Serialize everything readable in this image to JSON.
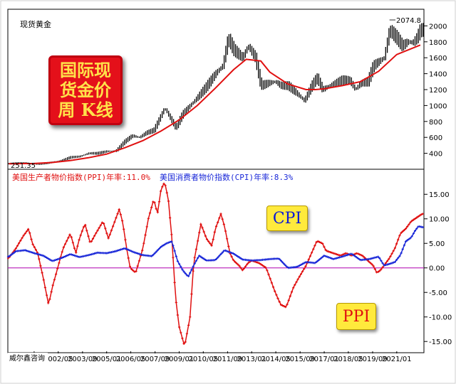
{
  "chart_data": [
    {
      "type": "line",
      "series_label": "现货黄金",
      "ylim": [
        200,
        2200
      ],
      "yticks": [
        400,
        600,
        800,
        1000,
        1200,
        1400,
        1600,
        1800,
        2000
      ],
      "y_tick_labels": [
        "400",
        "600",
        "800",
        "1000",
        "1200",
        "1400",
        "1600",
        "1800",
        "2000"
      ],
      "high_label": "2074.8",
      "low_label": "251.35",
      "series": [
        {
          "kind": "weekly-candles",
          "color": "#000000",
          "x": [
            1999.6,
            2000.5,
            2001.2,
            2001.8,
            2002.5,
            2003.0,
            2003.5,
            2004.0,
            2004.5,
            2005.0,
            2005.5,
            2006.0,
            2006.4,
            2006.8,
            2007.2,
            2007.6,
            2008.0,
            2008.2,
            2008.8,
            2009.2,
            2009.6,
            2010.0,
            2010.5,
            2011.0,
            2011.4,
            2011.7,
            2012.0,
            2012.5,
            2012.8,
            2013.2,
            2013.5,
            2013.9,
            2014.3,
            2014.6,
            2015.0,
            2015.5,
            2015.9,
            2016.3,
            2016.6,
            2016.9,
            2017.3,
            2017.7,
            2018.0,
            2018.4,
            2018.7,
            2019.0,
            2019.4,
            2019.7,
            2020.0,
            2020.3,
            2020.6,
            2020.8,
            2021.0,
            2021.3,
            2021.6,
            2021.9,
            2022.1,
            2022.3
          ],
          "values": [
            270,
            280,
            265,
            280,
            310,
            350,
            360,
            400,
            400,
            425,
            430,
            550,
            620,
            600,
            660,
            690,
            880,
            970,
            720,
            900,
            1000,
            1100,
            1240,
            1400,
            1500,
            1850,
            1700,
            1600,
            1750,
            1600,
            1250,
            1280,
            1300,
            1250,
            1250,
            1150,
            1060,
            1250,
            1350,
            1200,
            1250,
            1290,
            1320,
            1320,
            1200,
            1280,
            1300,
            1500,
            1550,
            1600,
            1950,
            1900,
            1850,
            1750,
            1800,
            1790,
            1850,
            1950
          ]
        },
        {
          "kind": "moving-average",
          "color": "#e01010",
          "x": [
            1999.6,
            2001.0,
            2002.0,
            2003.0,
            2004.0,
            2005.0,
            2006.0,
            2007.0,
            2008.0,
            2009.0,
            2010.0,
            2011.0,
            2012.0,
            2012.7,
            2013.5,
            2014.0,
            2015.0,
            2016.0,
            2016.5,
            2017.0,
            2018.0,
            2018.5,
            2019.0,
            2020.0,
            2021.0,
            2022.3
          ],
          "values": [
            270,
            272,
            285,
            310,
            345,
            390,
            470,
            560,
            680,
            820,
            1000,
            1220,
            1450,
            1580,
            1560,
            1420,
            1270,
            1200,
            1200,
            1210,
            1250,
            1275,
            1300,
            1430,
            1640,
            1760
          ]
        }
      ]
    },
    {
      "type": "line",
      "ylim": [
        -17,
        17.5
      ],
      "yticks": [
        -15,
        -10,
        -5,
        0,
        5,
        10,
        15
      ],
      "y_tick_labels": [
        "-15.00",
        "-10.00",
        "-5.00",
        "0.00",
        "5.00",
        "10.00",
        "15.00"
      ],
      "legend": [
        {
          "text": "美国生产者物价指数(PPI)年率:11.0%",
          "color": "#e01010"
        },
        {
          "text": "美国消费者物价指数(CPI)年率:8.3%",
          "color": "#1a28d8"
        }
      ],
      "annotations": [
        "CPI",
        "PPI"
      ],
      "source_label": "威尔鑫咨询",
      "x_tick_labels": [
        "01/01",
        "2002/05",
        "2003/09",
        "2005/01",
        "2006/05",
        "2007/09",
        "2009/01",
        "2010/05",
        "2011/09",
        "2013/01",
        "2014/05",
        "2015/09",
        "2017/01",
        "2018/05",
        "2019/09",
        "2021/01"
      ],
      "x_tick_values": [
        2001.0,
        2002.33,
        2003.67,
        2005.0,
        2006.33,
        2007.67,
        2009.0,
        2010.33,
        2011.67,
        2013.0,
        2014.33,
        2015.67,
        2017.0,
        2018.33,
        2019.67,
        2021.0
      ],
      "reference_line": {
        "y": 0,
        "color": "#b000b0"
      },
      "series": [
        {
          "name": "PPI",
          "color": "#e01010",
          "x": [
            1999.6,
            2000.0,
            2000.4,
            2000.7,
            2000.9,
            2001.2,
            2001.5,
            2001.8,
            2002.0,
            2002.3,
            2002.6,
            2003.0,
            2003.3,
            2003.5,
            2003.8,
            2004.1,
            2004.4,
            2004.8,
            2005.1,
            2005.4,
            2005.7,
            2005.9,
            2006.1,
            2006.3,
            2006.6,
            2006.8,
            2007.0,
            2007.3,
            2007.6,
            2007.8,
            2008.0,
            2008.2,
            2008.4,
            2008.6,
            2008.8,
            2009.0,
            2009.3,
            2009.6,
            2009.8,
            2010.0,
            2010.2,
            2010.5,
            2010.8,
            2011.0,
            2011.3,
            2011.5,
            2011.8,
            2012.0,
            2012.3,
            2012.5,
            2012.8,
            2013.0,
            2013.4,
            2013.8,
            2014.0,
            2014.3,
            2014.6,
            2014.9,
            2015.1,
            2015.3,
            2015.6,
            2016.0,
            2016.3,
            2016.6,
            2016.9,
            2017.1,
            2017.5,
            2017.9,
            2018.2,
            2018.5,
            2018.8,
            2019.1,
            2019.4,
            2019.7,
            2019.9,
            2020.1,
            2020.3,
            2020.6,
            2020.9,
            2021.2,
            2021.5,
            2021.8,
            2022.0,
            2022.2,
            2022.4
          ],
          "values": [
            2.0,
            4.0,
            6.5,
            8.0,
            5.0,
            3.0,
            -2.0,
            -7.5,
            -4.0,
            0.0,
            4.0,
            7.0,
            3.0,
            6.0,
            9.0,
            5.0,
            7.0,
            9.5,
            6.0,
            9.0,
            12.0,
            9.0,
            4.0,
            0.0,
            -1.0,
            1.5,
            4.0,
            10.0,
            14.0,
            11.0,
            16.0,
            17.5,
            14.0,
            6.0,
            -6.0,
            -12.0,
            -16.0,
            -10.0,
            1.0,
            5.0,
            9.0,
            6.0,
            4.5,
            8.0,
            11.0,
            8.5,
            3.0,
            1.5,
            0.5,
            -0.5,
            1.0,
            1.5,
            1.0,
            0.0,
            -2.0,
            -5.0,
            -7.5,
            -8.0,
            -6.0,
            -4.0,
            -2.0,
            0.5,
            3.0,
            5.5,
            5.0,
            3.5,
            3.0,
            2.5,
            3.0,
            2.5,
            3.0,
            2.5,
            1.5,
            0.5,
            -1.0,
            -0.5,
            0.5,
            2.0,
            4.0,
            7.0,
            8.0,
            9.5,
            10.0,
            10.5,
            11.0
          ]
        },
        {
          "name": "CPI",
          "color": "#1a28d8",
          "x": [
            1999.6,
            2000.0,
            2000.5,
            2001.0,
            2001.5,
            2002.0,
            2002.5,
            2003.0,
            2003.5,
            2004.0,
            2004.5,
            2005.0,
            2005.5,
            2006.0,
            2006.5,
            2007.0,
            2007.5,
            2008.0,
            2008.3,
            2008.6,
            2008.9,
            2009.2,
            2009.5,
            2009.8,
            2010.1,
            2010.5,
            2011.0,
            2011.5,
            2012.0,
            2012.5,
            2013.0,
            2013.5,
            2014.0,
            2014.5,
            2015.0,
            2015.5,
            2016.0,
            2016.5,
            2017.0,
            2017.5,
            2018.0,
            2018.5,
            2019.0,
            2019.5,
            2020.0,
            2020.3,
            2020.6,
            2020.9,
            2021.2,
            2021.5,
            2021.8,
            2022.0,
            2022.2,
            2022.4
          ],
          "values": [
            2.3,
            3.4,
            3.6,
            3.0,
            2.5,
            1.4,
            2.0,
            2.8,
            2.2,
            2.6,
            3.1,
            3.0,
            3.4,
            4.0,
            3.2,
            2.6,
            2.4,
            4.3,
            5.0,
            5.4,
            1.5,
            -0.5,
            -1.8,
            0.5,
            2.5,
            1.5,
            1.6,
            3.6,
            2.9,
            1.7,
            1.5,
            1.6,
            1.8,
            1.9,
            0.0,
            0.2,
            1.2,
            1.0,
            2.5,
            1.8,
            2.3,
            2.9,
            1.6,
            1.8,
            2.3,
            0.5,
            0.8,
            1.2,
            2.6,
            5.4,
            6.2,
            7.5,
            8.5,
            8.3
          ]
        }
      ]
    }
  ],
  "title_box": {
    "line1": "国际现",
    "line2": "货金价",
    "line3": "周 K线"
  },
  "badges": {
    "cpi": "CPI",
    "ppi": "PPI"
  }
}
